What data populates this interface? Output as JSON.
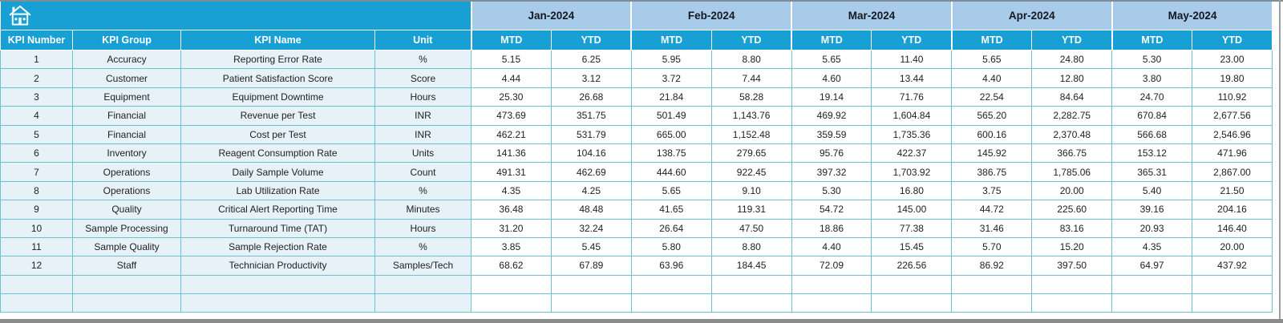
{
  "colors": {
    "header_blue": "#189fd3",
    "month_band_blue": "#a9cbea",
    "row_tint_blue": "#e7f1f8",
    "grid_teal": "#6cc3ce",
    "header_text": "#ffffff",
    "month_text": "#14191f",
    "body_text": "#222222",
    "bottom_bar_gray": "#8c8c8c"
  },
  "icons": {
    "home": "home-icon"
  },
  "table": {
    "kpi_headers": [
      "KPI Number",
      "KPI Group",
      "KPI Name",
      "Unit"
    ],
    "months": [
      "Jan-2024",
      "Feb-2024",
      "Mar-2024",
      "Apr-2024",
      "May-2024"
    ],
    "sub_headers": [
      "MTD",
      "YTD"
    ],
    "empty_row_count": 2,
    "rows": [
      {
        "number": "1",
        "group": "Accuracy",
        "name": "Reporting Error Rate",
        "unit": "%",
        "values": [
          "5.15",
          "6.25",
          "5.95",
          "8.80",
          "5.65",
          "11.40",
          "5.65",
          "24.80",
          "5.30",
          "23.00"
        ]
      },
      {
        "number": "2",
        "group": "Customer",
        "name": "Patient Satisfaction Score",
        "unit": "Score",
        "values": [
          "4.44",
          "3.12",
          "3.72",
          "7.44",
          "4.60",
          "13.44",
          "4.40",
          "12.80",
          "3.80",
          "19.80"
        ]
      },
      {
        "number": "3",
        "group": "Equipment",
        "name": "Equipment Downtime",
        "unit": "Hours",
        "values": [
          "25.30",
          "26.68",
          "21.84",
          "58.28",
          "19.14",
          "71.76",
          "22.54",
          "84.64",
          "24.70",
          "110.92"
        ]
      },
      {
        "number": "4",
        "group": "Financial",
        "name": "Revenue per Test",
        "unit": "INR",
        "values": [
          "473.69",
          "351.75",
          "501.49",
          "1,143.76",
          "469.92",
          "1,604.84",
          "565.20",
          "2,282.75",
          "670.84",
          "2,677.56"
        ]
      },
      {
        "number": "5",
        "group": "Financial",
        "name": "Cost per Test",
        "unit": "INR",
        "values": [
          "462.21",
          "531.79",
          "665.00",
          "1,152.48",
          "359.59",
          "1,735.36",
          "600.16",
          "2,370.48",
          "566.68",
          "2,546.96"
        ]
      },
      {
        "number": "6",
        "group": "Inventory",
        "name": "Reagent Consumption Rate",
        "unit": "Units",
        "values": [
          "141.36",
          "104.16",
          "138.75",
          "279.65",
          "95.76",
          "422.37",
          "145.92",
          "366.75",
          "153.12",
          "471.96"
        ]
      },
      {
        "number": "7",
        "group": "Operations",
        "name": "Daily Sample Volume",
        "unit": "Count",
        "values": [
          "491.31",
          "462.69",
          "444.60",
          "922.45",
          "397.32",
          "1,703.92",
          "386.75",
          "1,785.06",
          "365.31",
          "2,867.00"
        ]
      },
      {
        "number": "8",
        "group": "Operations",
        "name": "Lab Utilization Rate",
        "unit": "%",
        "values": [
          "4.35",
          "4.25",
          "5.65",
          "9.10",
          "5.30",
          "16.80",
          "3.75",
          "20.00",
          "5.40",
          "21.50"
        ]
      },
      {
        "number": "9",
        "group": "Quality",
        "name": "Critical Alert Reporting Time",
        "unit": "Minutes",
        "values": [
          "36.48",
          "48.48",
          "41.65",
          "119.31",
          "54.72",
          "145.00",
          "44.72",
          "225.60",
          "39.16",
          "204.16"
        ]
      },
      {
        "number": "10",
        "group": "Sample Processing",
        "name": "Turnaround Time (TAT)",
        "unit": "Hours",
        "values": [
          "31.20",
          "32.24",
          "26.64",
          "47.50",
          "18.86",
          "77.38",
          "31.46",
          "83.16",
          "20.93",
          "146.40"
        ]
      },
      {
        "number": "11",
        "group": "Sample Quality",
        "name": "Sample Rejection Rate",
        "unit": "%",
        "values": [
          "3.85",
          "5.45",
          "5.80",
          "8.80",
          "4.40",
          "15.45",
          "5.70",
          "15.20",
          "4.35",
          "20.00"
        ]
      },
      {
        "number": "12",
        "group": "Staff",
        "name": "Technician Productivity",
        "unit": "Samples/Tech",
        "values": [
          "68.62",
          "67.89",
          "63.96",
          "184.45",
          "72.09",
          "226.56",
          "86.92",
          "397.50",
          "64.97",
          "437.92"
        ]
      }
    ]
  }
}
